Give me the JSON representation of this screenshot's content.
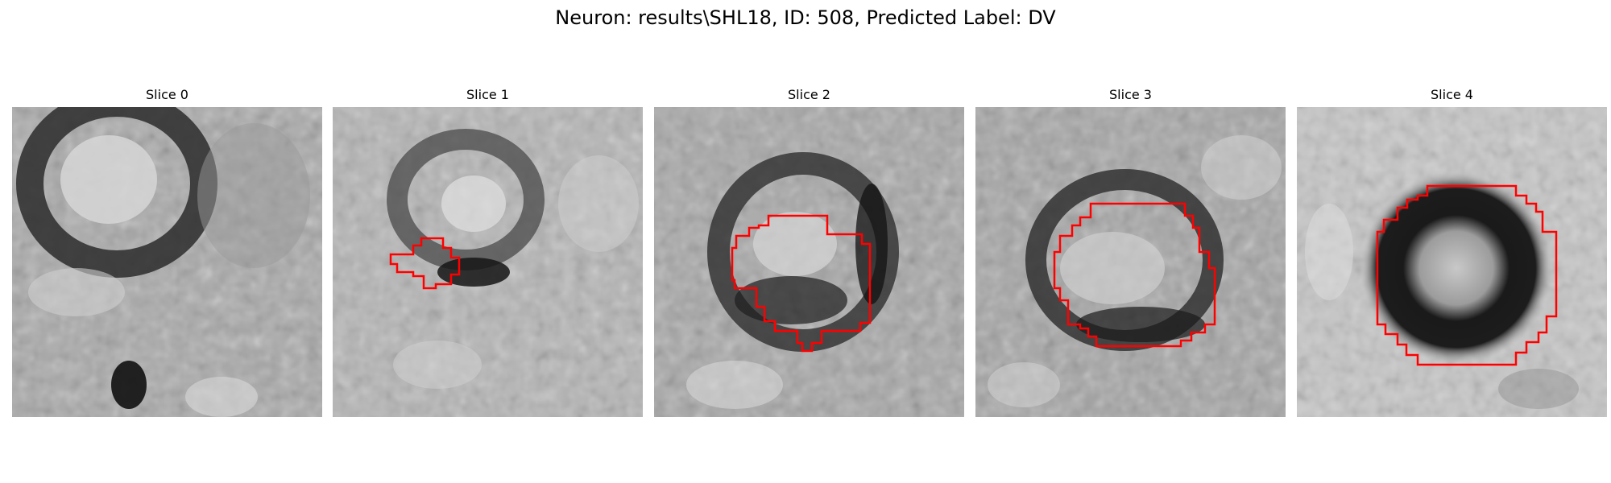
{
  "figure": {
    "title": "Neuron: results\\SHL18, ID: 508, Predicted Label: DV"
  },
  "colors": {
    "background": "#ffffff",
    "contour": "#ff0000",
    "colormap": "grayscale"
  },
  "panels": [
    {
      "title": "Slice 0",
      "has_contour": false
    },
    {
      "title": "Slice 1",
      "has_contour": true
    },
    {
      "title": "Slice 2",
      "has_contour": true
    },
    {
      "title": "Slice 3",
      "has_contour": true
    },
    {
      "title": "Slice 4",
      "has_contour": true
    }
  ]
}
